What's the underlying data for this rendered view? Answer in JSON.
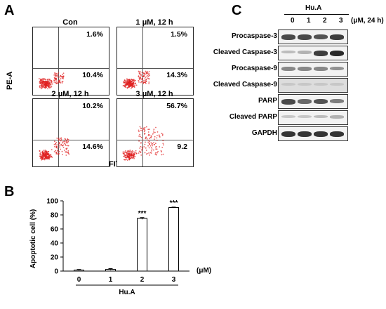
{
  "panels": {
    "a": "A",
    "b": "B",
    "c": "C"
  },
  "flow": {
    "ylabel": "PE-A",
    "xlabel": "FITC-A",
    "plots": [
      {
        "title": "Con",
        "ul": "1.6%",
        "lr": "10.4%",
        "density": 0.35
      },
      {
        "title": "1 μM, 12 h",
        "ul": "1.5%",
        "lr": "14.3%",
        "density": 0.4
      },
      {
        "title": "2 μM, 12 h",
        "ul": "10.2%",
        "lr": "14.6%",
        "density": 0.55
      },
      {
        "title": "3 μM, 12 h",
        "ul": "56.7%",
        "lr": "9.2",
        "density": 0.9
      }
    ]
  },
  "western": {
    "group_label": "Hu.A",
    "lanes": [
      "0",
      "1",
      "2",
      "3"
    ],
    "unit": "(μM, 24 h)",
    "rows": [
      {
        "label": "Procaspase-3",
        "intensity": [
          0.75,
          0.75,
          0.7,
          0.8
        ]
      },
      {
        "label": "Cleaved Caspase-3",
        "intensity": [
          0.2,
          0.25,
          0.8,
          0.9
        ]
      },
      {
        "label": "Procaspase-9",
        "intensity": [
          0.45,
          0.45,
          0.45,
          0.4
        ]
      },
      {
        "label": "Cleaved Caspase-9",
        "intensity": [
          0.15,
          0.15,
          0.15,
          0.15
        ]
      },
      {
        "label": "PARP",
        "intensity": [
          0.75,
          0.6,
          0.7,
          0.5
        ]
      },
      {
        "label": "Cleaved PARP",
        "intensity": [
          0.15,
          0.15,
          0.2,
          0.25
        ]
      },
      {
        "label": "GAPDH",
        "intensity": [
          0.85,
          0.85,
          0.85,
          0.85
        ]
      }
    ]
  },
  "chart_data": {
    "type": "bar",
    "categories": [
      "0",
      "1",
      "2",
      "3"
    ],
    "values": [
      1.5,
      2.5,
      75,
      90.5
    ],
    "errors": [
      0.8,
      1.0,
      1.2,
      0.6
    ],
    "significance": [
      "",
      "",
      "***",
      "***"
    ],
    "ylabel": "Apoptotic cell (%)",
    "xunit": "(μM)",
    "xgroup": "Hu.A",
    "ylim": [
      0,
      100
    ],
    "yticks": [
      0,
      20,
      40,
      60,
      80,
      100
    ]
  }
}
